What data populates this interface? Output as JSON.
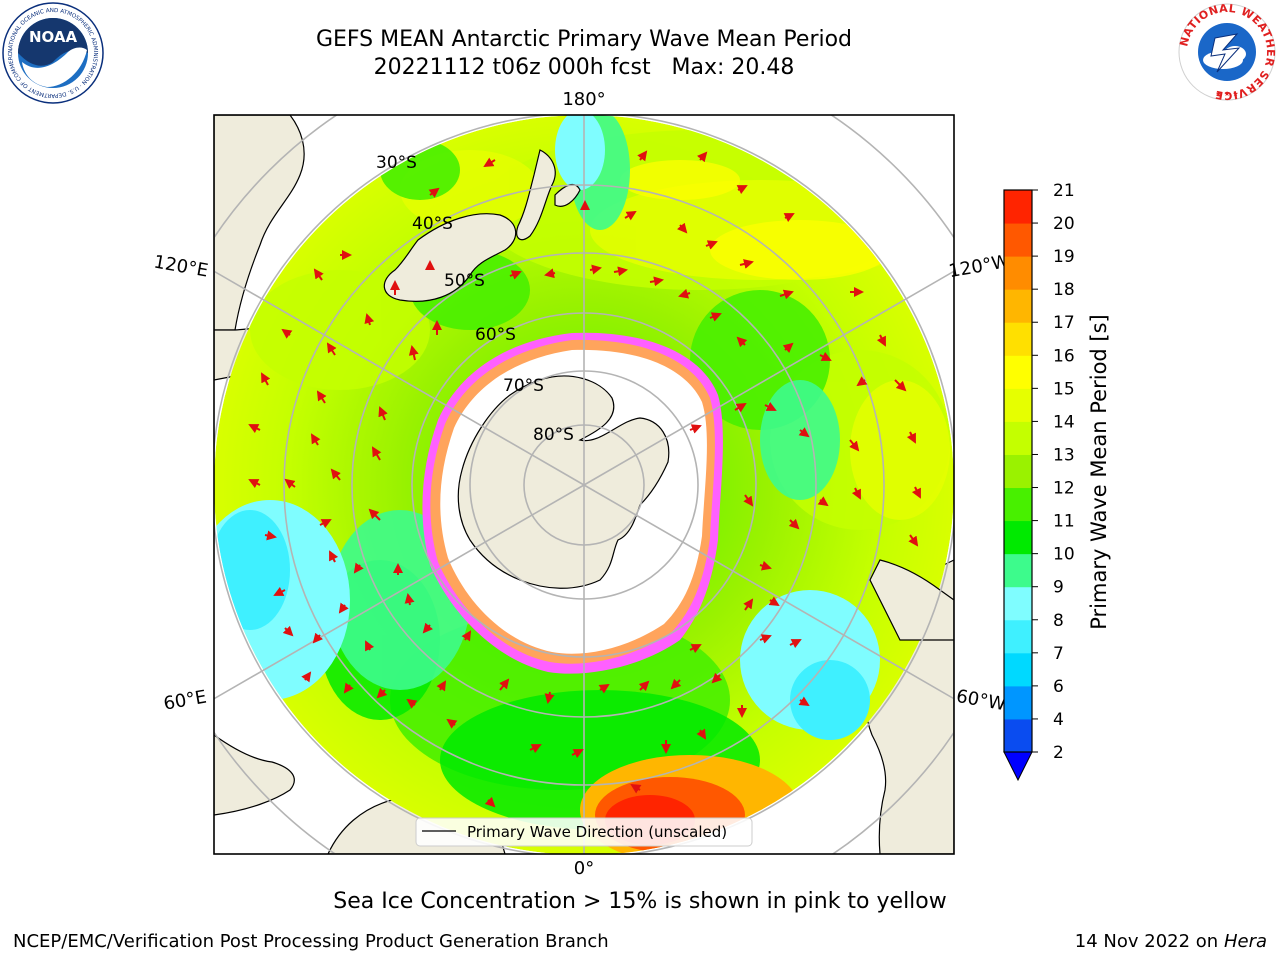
{
  "header": {
    "title_line1": "GEFS MEAN Antarctic Primary Wave Mean Period",
    "title_line2": "20221112 t06z 000h fcst   Max: 20.48"
  },
  "logos": {
    "noaa_text": "NOAA",
    "noaa_ring_text": "NATIONAL OCEANIC AND ATMOSPHERIC ADMINISTRATION · U.S. DEPARTMENT OF COMMERCE",
    "nws_ring_text": "NATIONAL WEATHER SERVICE"
  },
  "map": {
    "projection": "south-polar-stereographic",
    "longitude_labels": {
      "top": "180°",
      "upper_left": "120°E",
      "upper_right": "120°W",
      "lower_left": "60°E",
      "lower_right": "60°W",
      "bottom": "0°"
    },
    "latitude_labels": [
      "30°S",
      "40°S",
      "50°S",
      "60°S",
      "70°S",
      "80°S"
    ],
    "legend_label": "Primary Wave Direction (unscaled)"
  },
  "colorbar": {
    "label": "Primary Wave Mean Period [s]",
    "ticks": [
      "2",
      "4",
      "6",
      "7",
      "8",
      "9",
      "10",
      "11",
      "12",
      "13",
      "14",
      "15",
      "16",
      "17",
      "18",
      "19",
      "20",
      "21"
    ],
    "colors": [
      "#0a4cf0",
      "#0096ff",
      "#00d9ff",
      "#3ff0ff",
      "#7ffdff",
      "#3dfb8c",
      "#00ea00",
      "#48f000",
      "#9af200",
      "#c4ff00",
      "#e6ff00",
      "#ffff00",
      "#ffe000",
      "#ffb600",
      "#ff8c00",
      "#ff5800",
      "#ff2400"
    ],
    "extend_color": "#0000ff"
  },
  "chart_data": {
    "type": "heatmap",
    "variable": "Primary Wave Mean Period",
    "units": "s",
    "max_value": 20.48,
    "color_levels": [
      2,
      4,
      6,
      7,
      8,
      9,
      10,
      11,
      12,
      13,
      14,
      15,
      16,
      17,
      18,
      19,
      20,
      21
    ]
  },
  "footer": {
    "note": "Sea Ice Concentration > 15% is shown in pink to yellow",
    "credits": "NCEP/EMC/Verification Post Processing Product Generation Branch",
    "date_text": "14 Nov 2022 on",
    "machine": "Hera"
  }
}
